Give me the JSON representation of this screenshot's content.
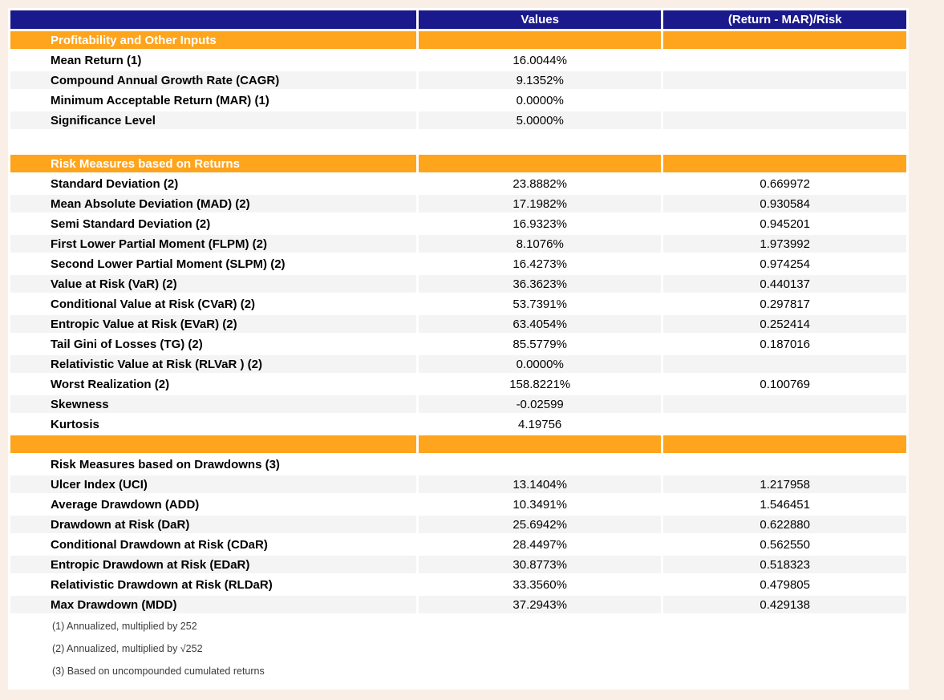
{
  "colors": {
    "header_bg": "#1B1A8C",
    "section_bg": "#FFA41D",
    "stripe_bg": "#F4F4F4",
    "page_bg": "#F9EFE7",
    "header_text": "#FFFFFF"
  },
  "table": {
    "header": {
      "col1": "",
      "col2": "Values",
      "col3": "(Return - MAR)/Risk"
    },
    "rows": [
      {
        "type": "section",
        "label": "Profitability and Other Inputs",
        "value": "",
        "ratio": ""
      },
      {
        "type": "data",
        "label": "Mean Return (1)",
        "value": "16.0044%",
        "ratio": ""
      },
      {
        "type": "data",
        "label": "Compound Annual Growth Rate (CAGR)",
        "value": "9.1352%",
        "ratio": ""
      },
      {
        "type": "data",
        "label": "Minimum Acceptable Return (MAR) (1)",
        "value": "0.0000%",
        "ratio": ""
      },
      {
        "type": "data",
        "label": "Significance Level",
        "value": "5.0000%",
        "ratio": ""
      },
      {
        "type": "spacer",
        "label": "",
        "value": "",
        "ratio": ""
      },
      {
        "type": "section",
        "label": "Risk Measures based on Returns",
        "value": "",
        "ratio": ""
      },
      {
        "type": "data",
        "label": "Standard Deviation (2)",
        "value": "23.8882%",
        "ratio": "0.669972"
      },
      {
        "type": "data",
        "label": "Mean Absolute Deviation (MAD) (2)",
        "value": "17.1982%",
        "ratio": "0.930584"
      },
      {
        "type": "data",
        "label": "Semi Standard Deviation (2)",
        "value": "16.9323%",
        "ratio": "0.945201"
      },
      {
        "type": "data",
        "label": "First Lower Partial Moment (FLPM) (2)",
        "value": "8.1076%",
        "ratio": "1.973992"
      },
      {
        "type": "data",
        "label": "Second Lower Partial Moment (SLPM) (2)",
        "value": "16.4273%",
        "ratio": "0.974254"
      },
      {
        "type": "data",
        "label": "Value at Risk (VaR) (2)",
        "value": "36.3623%",
        "ratio": "0.440137"
      },
      {
        "type": "data",
        "label": "Conditional Value at Risk (CVaR) (2)",
        "value": "53.7391%",
        "ratio": "0.297817"
      },
      {
        "type": "data",
        "label": "Entropic Value at Risk (EVaR) (2)",
        "value": "63.4054%",
        "ratio": "0.252414"
      },
      {
        "type": "data",
        "label": "Tail Gini of Losses (TG) (2)",
        "value": "85.5779%",
        "ratio": "0.187016"
      },
      {
        "type": "data",
        "label": "Relativistic Value at Risk (RLVaR ) (2)",
        "value": "0.0000%",
        "ratio": ""
      },
      {
        "type": "data",
        "label": "Worst Realization (2)",
        "value": "158.8221%",
        "ratio": "0.100769"
      },
      {
        "type": "data",
        "label": "Skewness",
        "value": "-0.02599",
        "ratio": ""
      },
      {
        "type": "data",
        "label": "Kurtosis",
        "value": "4.19756",
        "ratio": ""
      },
      {
        "type": "section",
        "label": "",
        "value": "",
        "ratio": ""
      },
      {
        "type": "subheader",
        "label": "Risk Measures based on Drawdowns (3)",
        "value": "",
        "ratio": ""
      },
      {
        "type": "data",
        "label": "Ulcer Index (UCI)",
        "value": "13.1404%",
        "ratio": "1.217958"
      },
      {
        "type": "data",
        "label": "Average Drawdown (ADD)",
        "value": "10.3491%",
        "ratio": "1.546451"
      },
      {
        "type": "data",
        "label": "Drawdown at Risk (DaR)",
        "value": "25.6942%",
        "ratio": "0.622880"
      },
      {
        "type": "data",
        "label": "Conditional Drawdown at Risk (CDaR)",
        "value": "28.4497%",
        "ratio": "0.562550"
      },
      {
        "type": "data",
        "label": "Entropic Drawdown at Risk (EDaR)",
        "value": "30.8773%",
        "ratio": "0.518323"
      },
      {
        "type": "data",
        "label": "Relativistic Drawdown at Risk (RLDaR)",
        "value": "33.3560%",
        "ratio": "0.479805"
      },
      {
        "type": "data",
        "label": "Max Drawdown (MDD)",
        "value": "37.2943%",
        "ratio": "0.429138"
      },
      {
        "type": "footnote",
        "label": "(1) Annualized, multiplied by 252",
        "value": "",
        "ratio": ""
      },
      {
        "type": "footnote",
        "label": "(2) Annualized, multiplied by √252",
        "value": "",
        "ratio": ""
      },
      {
        "type": "footnote",
        "label": "(3) Based on uncompounded cumulated returns",
        "value": "",
        "ratio": ""
      }
    ]
  }
}
